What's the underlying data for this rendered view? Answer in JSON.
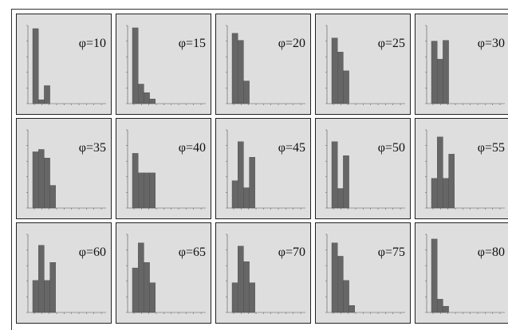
{
  "chart_data": [
    {
      "type": "bar",
      "label_symbol": "φ",
      "label_eq": "=",
      "label_value": "10",
      "values": [
        96,
        5,
        23,
        0,
        0,
        0,
        0,
        0,
        0
      ],
      "ylim": [
        0,
        100
      ]
    },
    {
      "type": "bar",
      "label_symbol": "φ",
      "label_eq": "=",
      "label_value": "15",
      "values": [
        97,
        25,
        14,
        6,
        0,
        0,
        0,
        0,
        0
      ],
      "ylim": [
        0,
        100
      ]
    },
    {
      "type": "bar",
      "label_symbol": "φ",
      "label_eq": "=",
      "label_value": "20",
      "values": [
        90,
        81,
        29,
        0,
        0,
        0,
        0,
        0,
        0
      ],
      "ylim": [
        0,
        100
      ]
    },
    {
      "type": "bar",
      "label_symbol": "φ",
      "label_eq": "=",
      "label_value": "25",
      "values": [
        84,
        66,
        42,
        0,
        0,
        0,
        0,
        0,
        0
      ],
      "ylim": [
        0,
        100
      ]
    },
    {
      "type": "bar",
      "label_symbol": "φ",
      "label_eq": "=",
      "label_value": "30",
      "values": [
        80,
        57,
        81,
        0,
        0,
        0,
        0,
        0,
        0
      ],
      "ylim": [
        0,
        100
      ]
    },
    {
      "type": "bar",
      "label_symbol": "φ",
      "label_eq": "=",
      "label_value": "35",
      "values": [
        72,
        75,
        64,
        29,
        0,
        0,
        0,
        0,
        0
      ],
      "ylim": [
        0,
        100
      ]
    },
    {
      "type": "bar",
      "label_symbol": "φ",
      "label_eq": "=",
      "label_value": "40",
      "values": [
        70,
        45,
        45,
        45,
        0,
        0,
        0,
        0,
        0
      ],
      "ylim": [
        0,
        100
      ]
    },
    {
      "type": "bar",
      "label_symbol": "φ",
      "label_eq": "=",
      "label_value": "45",
      "values": [
        35,
        85,
        26,
        65,
        0,
        0,
        0,
        0,
        0
      ],
      "ylim": [
        0,
        100
      ]
    },
    {
      "type": "bar",
      "label_symbol": "φ",
      "label_eq": "=",
      "label_value": "50",
      "values": [
        85,
        25,
        67,
        0,
        0,
        0,
        0,
        0,
        0
      ],
      "ylim": [
        0,
        100
      ]
    },
    {
      "type": "bar",
      "label_symbol": "φ",
      "label_eq": "=",
      "label_value": "55",
      "values": [
        38,
        91,
        38,
        69,
        0,
        0,
        0,
        0,
        0
      ],
      "ylim": [
        0,
        100
      ]
    },
    {
      "type": "bar",
      "label_symbol": "φ",
      "label_eq": "=",
      "label_value": "60",
      "values": [
        41,
        86,
        41,
        64,
        0,
        0,
        0,
        0,
        0
      ],
      "ylim": [
        0,
        100
      ]
    },
    {
      "type": "bar",
      "label_symbol": "φ",
      "label_eq": "=",
      "label_value": "65",
      "values": [
        57,
        89,
        64,
        38,
        0,
        0,
        0,
        0,
        0
      ],
      "ylim": [
        0,
        100
      ]
    },
    {
      "type": "bar",
      "label_symbol": "φ",
      "label_eq": "=",
      "label_value": "70",
      "values": [
        38,
        85,
        65,
        38,
        0,
        0,
        0,
        0,
        0
      ],
      "ylim": [
        0,
        100
      ]
    },
    {
      "type": "bar",
      "label_symbol": "φ",
      "label_eq": "=",
      "label_value": "75",
      "values": [
        89,
        72,
        41,
        9,
        0,
        0,
        0,
        0,
        0
      ],
      "ylim": [
        0,
        100
      ]
    },
    {
      "type": "bar",
      "label_symbol": "φ",
      "label_eq": "=",
      "label_value": "80",
      "values": [
        94,
        17,
        8,
        0,
        0,
        0,
        0,
        0,
        0
      ],
      "ylim": [
        0,
        100
      ]
    }
  ],
  "colors": {
    "bar": "#666666",
    "bar_stroke": "#4a4a4a",
    "panel_bg": "#dedede",
    "axis": "#555555"
  }
}
